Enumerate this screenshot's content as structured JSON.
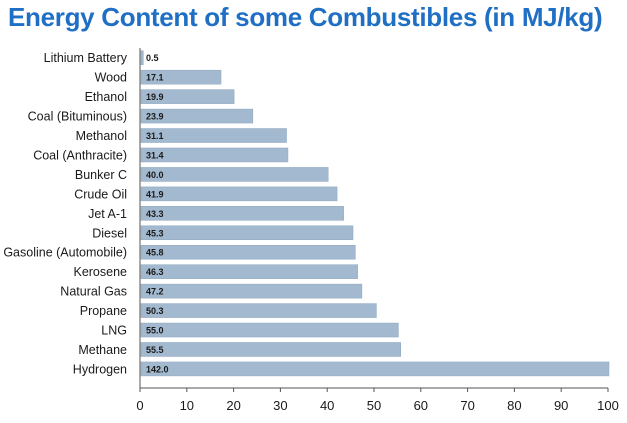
{
  "title": "Energy Content of some Combustibles (in MJ/kg)",
  "colors": {
    "bar": "#a3b9cf",
    "bar_edge": "#8fa7bf",
    "title": "#1f6fc4",
    "axis": "#555555"
  },
  "chart_data": {
    "type": "bar",
    "orientation": "horizontal",
    "title": "Energy Content of some Combustibles (in MJ/kg)",
    "categories": [
      "Lithium Battery",
      "Wood",
      "Ethanol",
      "Coal (Bituminous)",
      "Methanol",
      "Coal (Anthracite)",
      "Bunker C",
      "Crude Oil",
      "Jet A-1",
      "Diesel",
      "Gasoline (Automobile)",
      "Kerosene",
      "Natural Gas",
      "Propane",
      "LNG",
      "Methane",
      "Hydrogen"
    ],
    "values": [
      0.5,
      17.1,
      19.9,
      23.9,
      31.1,
      31.4,
      40.0,
      41.9,
      43.3,
      45.3,
      45.8,
      46.3,
      47.2,
      50.3,
      55.0,
      55.5,
      142.0
    ],
    "value_labels": [
      "0.5",
      "17.1",
      "19.9",
      "23.9",
      "31.1",
      "31.4",
      "40.0",
      "41.9",
      "43.3",
      "45.3",
      "45.8",
      "46.3",
      "47.2",
      "50.3",
      "55.0",
      "55.5",
      "142.0"
    ],
    "xlim": [
      0,
      100
    ],
    "xticks": [
      "0",
      "10",
      "20",
      "30",
      "40",
      "50",
      "60",
      "70",
      "80",
      "90",
      "100"
    ],
    "grid": false,
    "legend": "none"
  }
}
